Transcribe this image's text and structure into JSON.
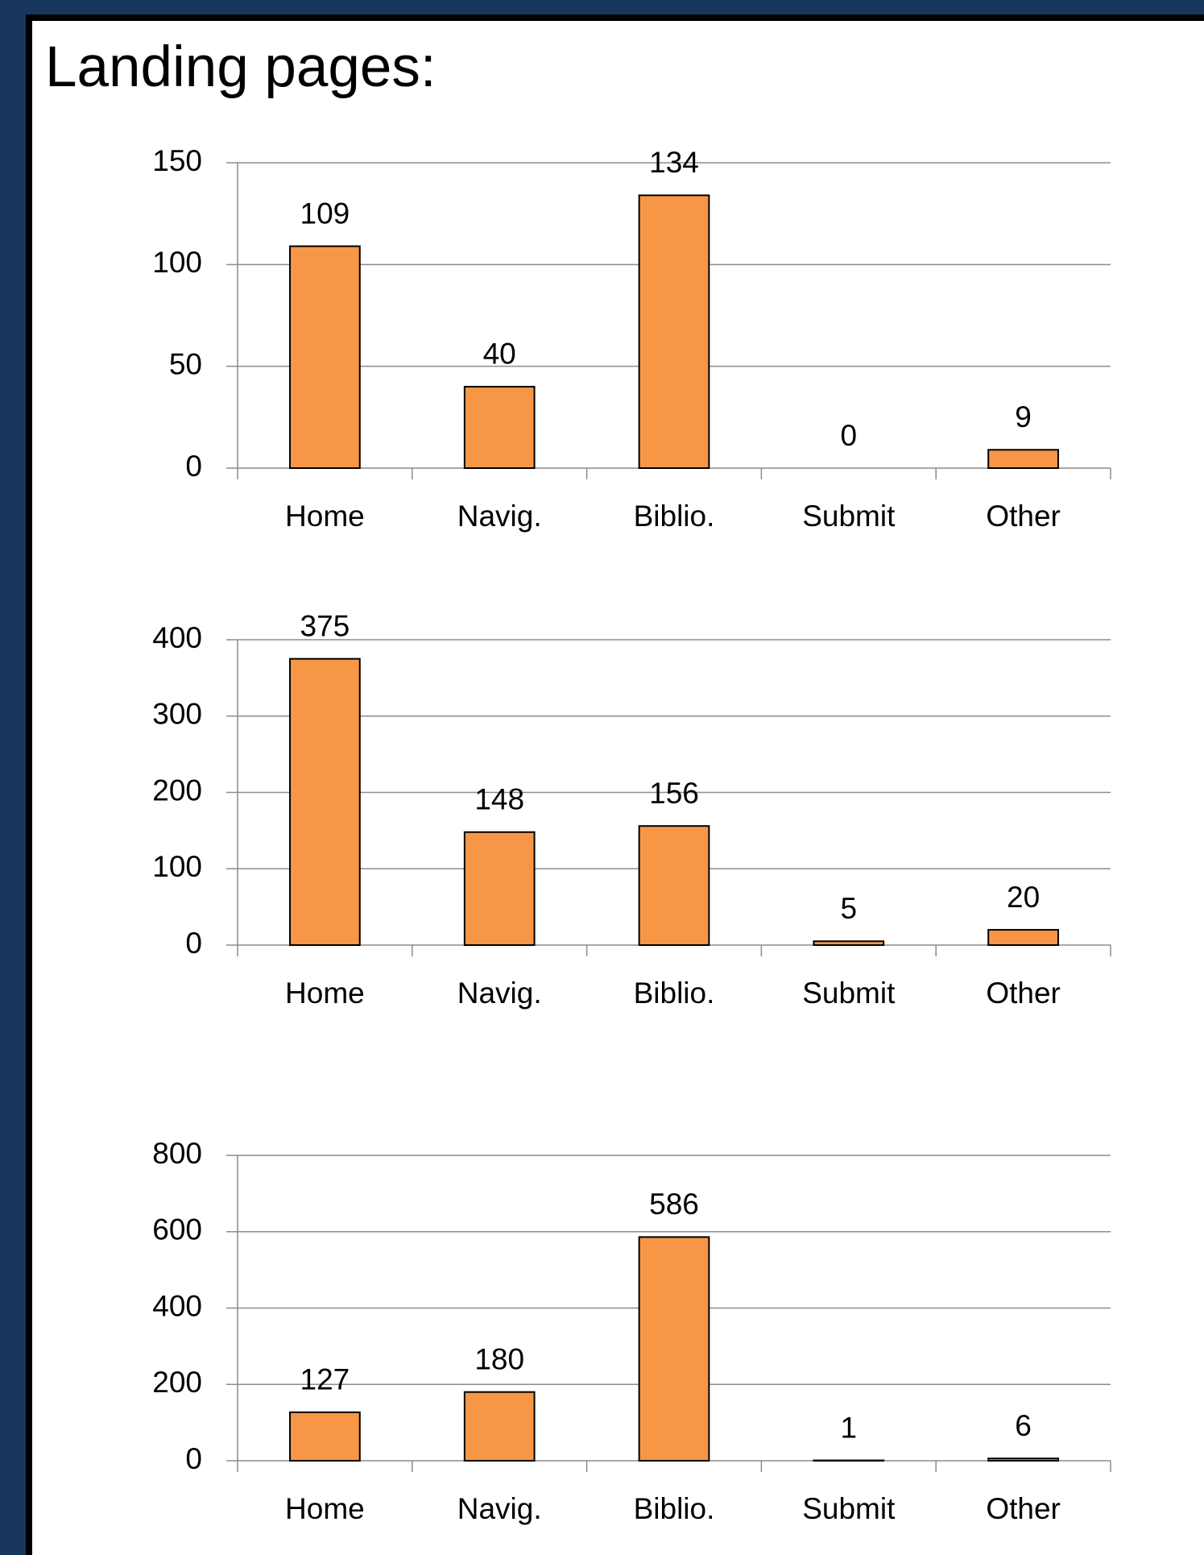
{
  "title": "Landing pages:",
  "chart_data": [
    {
      "type": "bar",
      "categories": [
        "Home",
        "Navig.",
        "Biblio.",
        "Submit",
        "Other"
      ],
      "values": [
        109,
        40,
        134,
        0,
        9
      ],
      "color": "#f79646",
      "ylim": [
        0,
        150
      ],
      "yticks": [
        0,
        50,
        100,
        150
      ],
      "grid": true
    },
    {
      "type": "bar",
      "categories": [
        "Home",
        "Navig.",
        "Biblio.",
        "Submit",
        "Other"
      ],
      "values": [
        375,
        148,
        156,
        5,
        20
      ],
      "color": "#f79646",
      "ylim": [
        0,
        400
      ],
      "yticks": [
        0,
        100,
        200,
        300,
        400
      ],
      "grid": true
    },
    {
      "type": "bar",
      "categories": [
        "Home",
        "Navig.",
        "Biblio.",
        "Submit",
        "Other"
      ],
      "values": [
        127,
        180,
        586,
        1,
        6
      ],
      "color": "#f79646",
      "ylim": [
        0,
        800
      ],
      "yticks": [
        0,
        200,
        400,
        600,
        800
      ],
      "grid": true
    }
  ]
}
